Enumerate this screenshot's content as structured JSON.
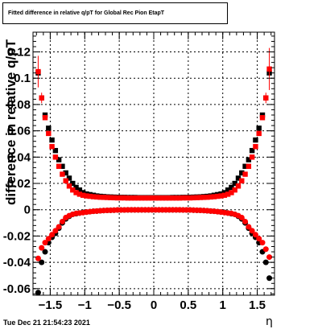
{
  "chart_data": {
    "type": "scatter",
    "title": "Fitted difference in relative q/pT for Global Rec Pion EtapT",
    "xlabel": "η",
    "ylabel": "difference in relative q/pT",
    "timestamp": "Tue Dec 21 21:54:23 2021",
    "xlim": [
      -1.75,
      1.75
    ],
    "ylim": [
      -0.065,
      0.135
    ],
    "grid": true,
    "x_ticks": [
      -1.5,
      -1,
      -0.5,
      0,
      0.5,
      1,
      1.5
    ],
    "x_tick_labels": [
      "−1.5",
      "−1",
      "−0.5",
      "0",
      "0.5",
      "1",
      "1.5"
    ],
    "y_ticks": [
      -0.06,
      -0.04,
      -0.02,
      0,
      0.02,
      0.04,
      0.06,
      0.08,
      0.1,
      0.12
    ],
    "y_tick_labels": [
      "-0.06",
      "-0.04",
      "-0.02",
      "0",
      "0.02",
      "0.04",
      "0.06",
      "0.08",
      "0.1",
      "0.12"
    ],
    "series": [
      {
        "marker": "square",
        "color": "#000000",
        "x": [
          -1.675,
          -1.625,
          -1.575,
          -1.525,
          -1.475,
          -1.425,
          -1.375,
          -1.325,
          -1.275,
          -1.225,
          -1.175,
          -1.125,
          -1.075,
          -1.025,
          -0.975,
          -0.925,
          -0.875,
          -0.825,
          -0.775,
          -0.725,
          -0.675,
          -0.625,
          -0.575,
          -0.525,
          -0.475,
          -0.425,
          -0.375,
          -0.325,
          -0.275,
          -0.225,
          -0.175,
          -0.125,
          -0.075,
          -0.025,
          0.025,
          0.075,
          0.125,
          0.175,
          0.225,
          0.275,
          0.325,
          0.375,
          0.425,
          0.475,
          0.525,
          0.575,
          0.625,
          0.675,
          0.725,
          0.775,
          0.825,
          0.875,
          0.925,
          0.975,
          1.025,
          1.075,
          1.125,
          1.175,
          1.225,
          1.275,
          1.325,
          1.375,
          1.425,
          1.475,
          1.525,
          1.575,
          1.625,
          1.675
        ],
        "y": [
          0.104,
          0.085,
          0.072,
          0.062,
          0.053,
          0.045,
          0.038,
          0.033,
          0.028,
          0.024,
          0.02,
          0.017,
          0.015,
          0.013,
          0.012,
          0.0115,
          0.011,
          0.0105,
          0.0102,
          0.01,
          0.0098,
          0.0097,
          0.0096,
          0.0095,
          0.0094,
          0.0094,
          0.0093,
          0.0093,
          0.0093,
          0.0092,
          0.0092,
          0.0092,
          0.0092,
          0.0092,
          0.0092,
          0.0092,
          0.0092,
          0.0092,
          0.0092,
          0.0093,
          0.0093,
          0.0093,
          0.0094,
          0.0094,
          0.0095,
          0.0096,
          0.0097,
          0.0098,
          0.01,
          0.0102,
          0.0105,
          0.011,
          0.0115,
          0.012,
          0.013,
          0.015,
          0.017,
          0.02,
          0.024,
          0.028,
          0.033,
          0.038,
          0.045,
          0.053,
          0.062,
          0.072,
          0.085,
          0.104
        ]
      },
      {
        "marker": "square",
        "color": "#ff0000",
        "x": [
          -1.675,
          -1.625,
          -1.575,
          -1.525,
          -1.475,
          -1.425,
          -1.375,
          -1.325,
          -1.275,
          -1.225,
          -1.175,
          -1.125,
          -1.075,
          -1.025,
          -0.975,
          -0.925,
          -0.875,
          -0.825,
          -0.775,
          -0.725,
          -0.675,
          -0.625,
          -0.575,
          -0.525,
          -0.475,
          -0.425,
          -0.375,
          -0.325,
          -0.275,
          -0.225,
          -0.175,
          -0.125,
          -0.075,
          -0.025,
          0.025,
          0.075,
          0.125,
          0.175,
          0.225,
          0.275,
          0.325,
          0.375,
          0.425,
          0.475,
          0.525,
          0.575,
          0.625,
          0.675,
          0.725,
          0.775,
          0.825,
          0.875,
          0.925,
          0.975,
          1.025,
          1.075,
          1.125,
          1.175,
          1.225,
          1.275,
          1.325,
          1.375,
          1.425,
          1.475,
          1.525,
          1.575,
          1.625,
          1.675
        ],
        "y": [
          0.105,
          0.085,
          0.07,
          0.058,
          0.048,
          0.04,
          0.033,
          0.027,
          0.022,
          0.018,
          0.015,
          0.013,
          0.0118,
          0.011,
          0.0105,
          0.0102,
          0.0099,
          0.0097,
          0.0095,
          0.0094,
          0.0093,
          0.0092,
          0.0091,
          0.009,
          0.009,
          0.009,
          0.0089,
          0.0089,
          0.0089,
          0.0089,
          0.0089,
          0.0089,
          0.0089,
          0.0089,
          0.0089,
          0.0089,
          0.0089,
          0.0089,
          0.0089,
          0.0089,
          0.0089,
          0.0089,
          0.009,
          0.009,
          0.009,
          0.0091,
          0.0092,
          0.0093,
          0.0094,
          0.0095,
          0.0097,
          0.0099,
          0.0102,
          0.0105,
          0.011,
          0.0118,
          0.013,
          0.015,
          0.018,
          0.022,
          0.027,
          0.033,
          0.04,
          0.048,
          0.058,
          0.07,
          0.085,
          0.107
        ],
        "yerr": [
          0.012,
          0.004,
          0.002,
          0.001,
          0.001,
          0.001,
          0.0008,
          0.0006,
          0.0005,
          0.0004,
          0.0003,
          0.0003,
          0.0003,
          0.0003,
          0.0003,
          0.0003,
          0.0003,
          0.0003,
          0.0003,
          0.0003,
          0.0003,
          0.0003,
          0.0003,
          0.0003,
          0.0003,
          0.0003,
          0.0003,
          0.0003,
          0.0003,
          0.0003,
          0.0003,
          0.0003,
          0.0003,
          0.0003,
          0.0003,
          0.0003,
          0.0003,
          0.0003,
          0.0003,
          0.0003,
          0.0003,
          0.0003,
          0.0003,
          0.0003,
          0.0003,
          0.0003,
          0.0003,
          0.0003,
          0.0003,
          0.0003,
          0.0003,
          0.0003,
          0.0003,
          0.0003,
          0.0003,
          0.0003,
          0.0003,
          0.0003,
          0.0003,
          0.0004,
          0.0005,
          0.0006,
          0.0008,
          0.001,
          0.001,
          0.002,
          0.004,
          0.016
        ]
      },
      {
        "marker": "circle",
        "color": "#000000",
        "x": [
          -1.675,
          -1.625,
          -1.575,
          -1.525,
          -1.475,
          -1.425,
          -1.375,
          -1.325,
          -1.275,
          -1.225,
          -1.175,
          -1.125,
          -1.075,
          -1.025,
          -0.975,
          -0.925,
          -0.875,
          -0.825,
          -0.775,
          -0.725,
          -0.675,
          -0.625,
          -0.575,
          -0.525,
          -0.475,
          -0.425,
          -0.375,
          -0.325,
          -0.275,
          -0.225,
          -0.175,
          -0.125,
          -0.075,
          -0.025,
          0.025,
          0.075,
          0.125,
          0.175,
          0.225,
          0.275,
          0.325,
          0.375,
          0.425,
          0.475,
          0.525,
          0.575,
          0.625,
          0.675,
          0.725,
          0.775,
          0.825,
          0.875,
          0.925,
          0.975,
          1.025,
          1.075,
          1.125,
          1.175,
          1.225,
          1.275,
          1.325,
          1.375,
          1.425,
          1.475,
          1.525,
          1.575,
          1.625,
          1.675
        ],
        "y": [
          -0.063,
          -0.04,
          -0.032,
          -0.025,
          -0.021,
          -0.018,
          -0.014,
          -0.01,
          -0.007,
          -0.005,
          -0.0035,
          -0.003,
          -0.0025,
          -0.002,
          -0.0018,
          -0.0015,
          -0.0012,
          -0.001,
          -0.0008,
          -0.0006,
          -0.0005,
          -0.0004,
          -0.0003,
          -0.0002,
          -0.0002,
          -0.0002,
          -0.0001,
          -0.0001,
          -0.0001,
          -0.0001,
          -0.0001,
          -0.0001,
          -0.0001,
          -0.0001,
          -0.0001,
          -0.0001,
          -0.0001,
          -0.0001,
          -0.0001,
          -0.0001,
          -0.0001,
          -0.0001,
          -0.0002,
          -0.0002,
          -0.0002,
          -0.0003,
          -0.0004,
          -0.0005,
          -0.0006,
          -0.0008,
          -0.001,
          -0.0012,
          -0.0015,
          -0.0018,
          -0.002,
          -0.0025,
          -0.003,
          -0.0035,
          -0.005,
          -0.007,
          -0.01,
          -0.014,
          -0.018,
          -0.021,
          -0.025,
          -0.032,
          -0.04,
          -0.052
        ]
      },
      {
        "marker": "circle",
        "color": "#ff0000",
        "x": [
          -1.675,
          -1.625,
          -1.575,
          -1.525,
          -1.475,
          -1.425,
          -1.375,
          -1.325,
          -1.275,
          -1.225,
          -1.175,
          -1.125,
          -1.075,
          -1.025,
          -0.975,
          -0.925,
          -0.875,
          -0.825,
          -0.775,
          -0.725,
          -0.675,
          -0.625,
          -0.575,
          -0.525,
          -0.475,
          -0.425,
          -0.375,
          -0.325,
          -0.275,
          -0.225,
          -0.175,
          -0.125,
          -0.075,
          -0.025,
          0.025,
          0.075,
          0.125,
          0.175,
          0.225,
          0.275,
          0.325,
          0.375,
          0.425,
          0.475,
          0.525,
          0.575,
          0.625,
          0.675,
          0.725,
          0.775,
          0.825,
          0.875,
          0.925,
          0.975,
          1.025,
          1.075,
          1.125,
          1.175,
          1.225,
          1.275,
          1.325,
          1.375,
          1.425,
          1.475,
          1.525,
          1.575,
          1.625,
          1.675
        ],
        "y": [
          -0.037,
          -0.029,
          -0.025,
          -0.022,
          -0.019,
          -0.016,
          -0.013,
          -0.009,
          -0.006,
          -0.0045,
          -0.0035,
          -0.0028,
          -0.0025,
          -0.0022,
          -0.0018,
          -0.0015,
          -0.0012,
          -0.001,
          -0.0008,
          -0.0006,
          -0.0005,
          -0.0004,
          -0.0003,
          -0.0002,
          -0.0002,
          -0.0002,
          -0.0001,
          -0.0001,
          -0.0001,
          -0.0001,
          -0.0001,
          -0.0001,
          -0.0001,
          -0.0001,
          -0.0001,
          -0.0001,
          -0.0001,
          -0.0001,
          -0.0001,
          -0.0001,
          -0.0001,
          -0.0001,
          -0.0002,
          -0.0002,
          -0.0002,
          -0.0003,
          -0.0004,
          -0.0005,
          -0.0006,
          -0.0008,
          -0.001,
          -0.0012,
          -0.0015,
          -0.0018,
          -0.0022,
          -0.0025,
          -0.0028,
          -0.0035,
          -0.0045,
          -0.006,
          -0.009,
          -0.013,
          -0.016,
          -0.019,
          -0.022,
          -0.025,
          -0.03,
          -0.036
        ]
      }
    ]
  }
}
